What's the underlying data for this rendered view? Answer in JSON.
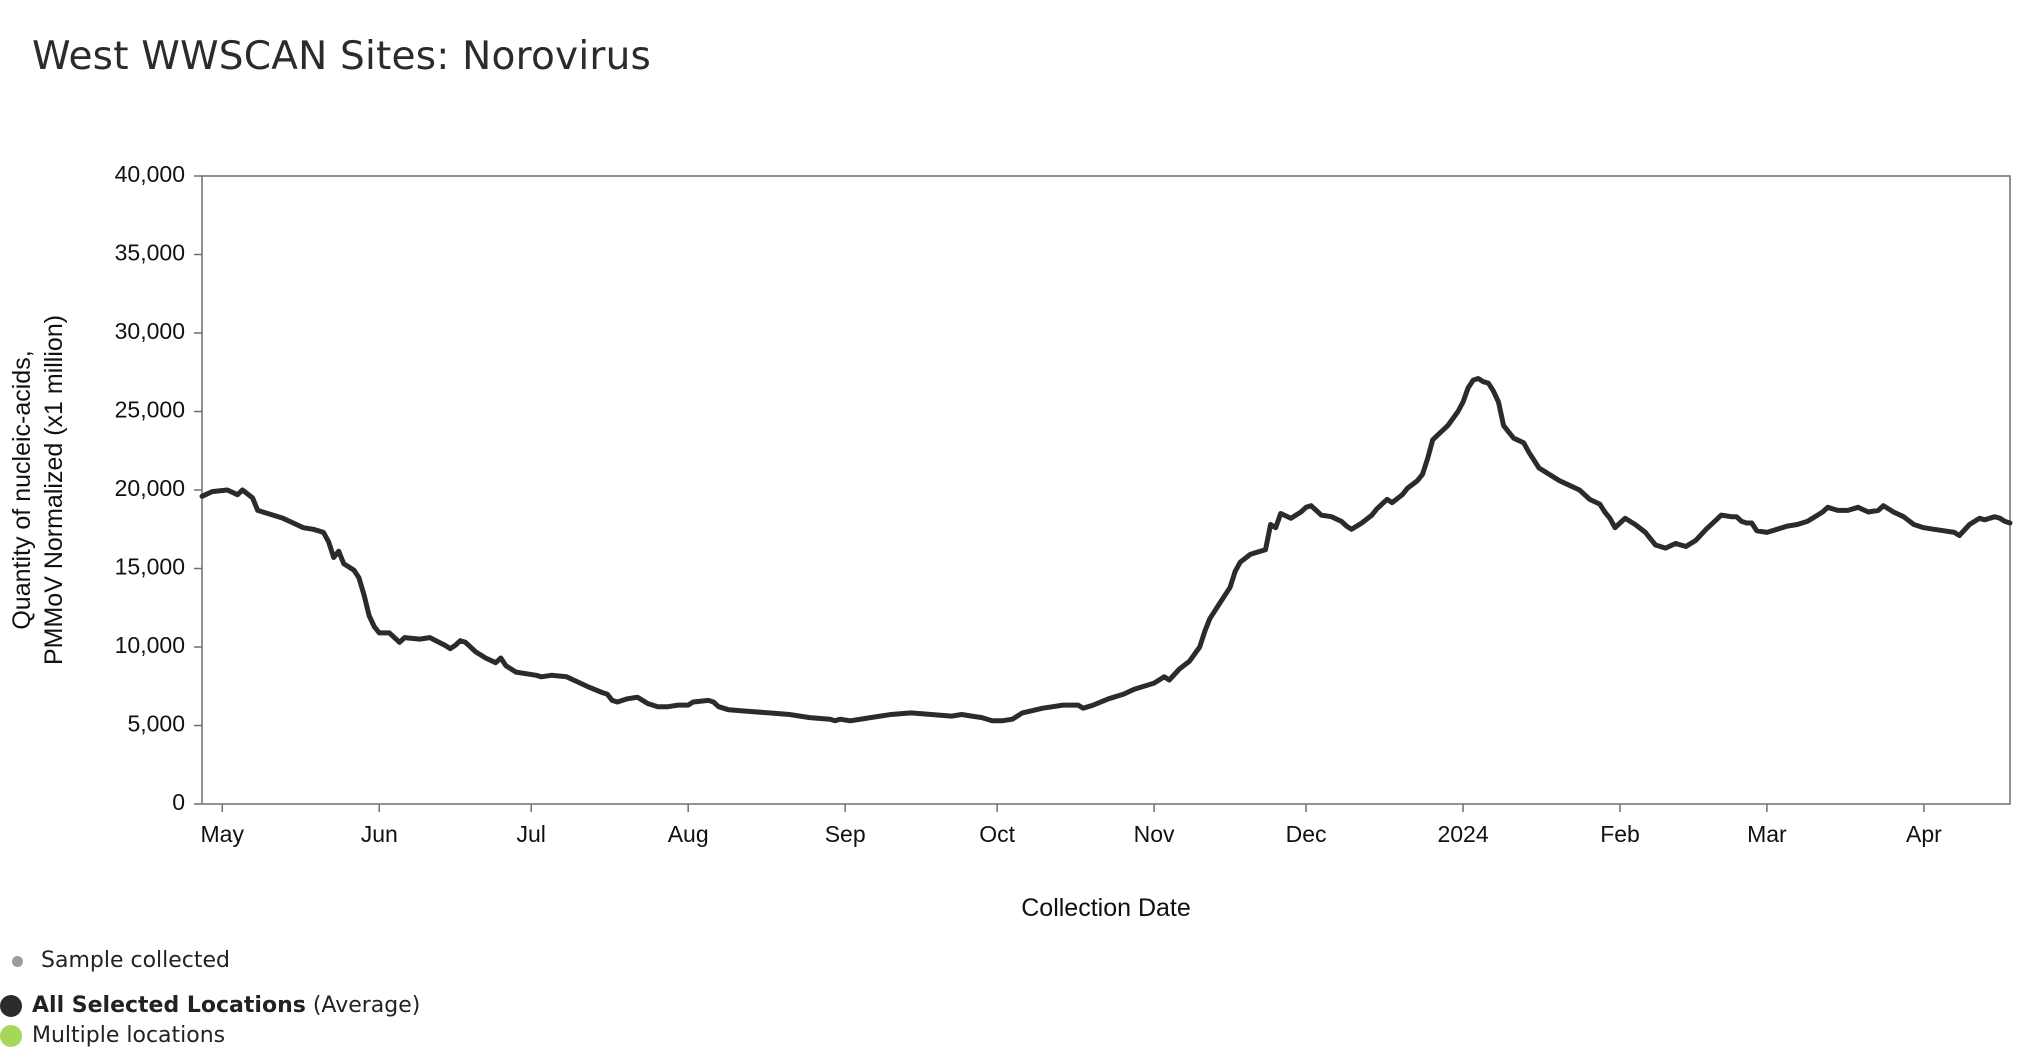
{
  "chart_data": {
    "type": "line",
    "title": "West WWSCAN Sites: Norovirus",
    "xlabel": "Collection Date",
    "ylabel_lines": [
      "Quantity of nucleic-acids,",
      "PMMoV Normalized (x1 million)"
    ],
    "ylim": [
      0,
      40000
    ],
    "y_ticks": [
      0,
      5000,
      10000,
      15000,
      20000,
      25000,
      30000,
      35000,
      40000
    ],
    "y_tick_labels": [
      "0",
      "5,000",
      "10,000",
      "15,000",
      "20,000",
      "25,000",
      "30,000",
      "35,000",
      "40,000"
    ],
    "xlim_days": [
      -4,
      353
    ],
    "x_ticks": [
      {
        "label": "May",
        "day": 0
      },
      {
        "label": "Jun",
        "day": 31
      },
      {
        "label": "Jul",
        "day": 61
      },
      {
        "label": "Aug",
        "day": 92
      },
      {
        "label": "Sep",
        "day": 123
      },
      {
        "label": "Oct",
        "day": 153
      },
      {
        "label": "Nov",
        "day": 184
      },
      {
        "label": "Dec",
        "day": 214
      },
      {
        "label": "2024",
        "day": 245
      },
      {
        "label": "Feb",
        "day": 276
      },
      {
        "label": "Mar",
        "day": 305
      },
      {
        "label": "Apr",
        "day": 336
      }
    ],
    "grid": false,
    "series": [
      {
        "name": "All Selected Locations",
        "color": "#2b2b2b",
        "points": [
          [
            -4,
            19600
          ],
          [
            -2,
            19900
          ],
          [
            1,
            20000
          ],
          [
            3,
            19700
          ],
          [
            4,
            20000
          ],
          [
            6,
            19500
          ],
          [
            7,
            18700
          ],
          [
            9,
            18500
          ],
          [
            12,
            18200
          ],
          [
            14,
            17900
          ],
          [
            16,
            17600
          ],
          [
            18,
            17500
          ],
          [
            20,
            17300
          ],
          [
            21,
            16700
          ],
          [
            22,
            15700
          ],
          [
            23,
            16100
          ],
          [
            24,
            15300
          ],
          [
            26,
            14900
          ],
          [
            27,
            14400
          ],
          [
            28,
            13300
          ],
          [
            29,
            12000
          ],
          [
            30,
            11300
          ],
          [
            31,
            10900
          ],
          [
            33,
            10900
          ],
          [
            35,
            10300
          ],
          [
            36,
            10600
          ],
          [
            39,
            10500
          ],
          [
            41,
            10600
          ],
          [
            44,
            10100
          ],
          [
            45,
            9900
          ],
          [
            46,
            10100
          ],
          [
            47,
            10400
          ],
          [
            48,
            10300
          ],
          [
            50,
            9700
          ],
          [
            52,
            9300
          ],
          [
            54,
            9000
          ],
          [
            55,
            9300
          ],
          [
            56,
            8800
          ],
          [
            58,
            8400
          ],
          [
            60,
            8300
          ],
          [
            62,
            8200
          ],
          [
            63,
            8100
          ],
          [
            65,
            8200
          ],
          [
            68,
            8100
          ],
          [
            70,
            7800
          ],
          [
            72,
            7500
          ],
          [
            75,
            7100
          ],
          [
            76,
            7000
          ],
          [
            77,
            6600
          ],
          [
            78,
            6500
          ],
          [
            80,
            6700
          ],
          [
            82,
            6800
          ],
          [
            84,
            6400
          ],
          [
            86,
            6200
          ],
          [
            88,
            6200
          ],
          [
            90,
            6300
          ],
          [
            92,
            6300
          ],
          [
            93,
            6500
          ],
          [
            96,
            6600
          ],
          [
            97,
            6500
          ],
          [
            98,
            6200
          ],
          [
            100,
            6000
          ],
          [
            104,
            5900
          ],
          [
            108,
            5800
          ],
          [
            112,
            5700
          ],
          [
            116,
            5500
          ],
          [
            120,
            5400
          ],
          [
            121,
            5300
          ],
          [
            122,
            5400
          ],
          [
            124,
            5300
          ],
          [
            128,
            5500
          ],
          [
            132,
            5700
          ],
          [
            136,
            5800
          ],
          [
            140,
            5700
          ],
          [
            144,
            5600
          ],
          [
            146,
            5700
          ],
          [
            148,
            5600
          ],
          [
            150,
            5500
          ],
          [
            152,
            5300
          ],
          [
            154,
            5300
          ],
          [
            156,
            5400
          ],
          [
            158,
            5800
          ],
          [
            162,
            6100
          ],
          [
            164,
            6200
          ],
          [
            166,
            6300
          ],
          [
            169,
            6300
          ],
          [
            170,
            6100
          ],
          [
            172,
            6300
          ],
          [
            175,
            6700
          ],
          [
            178,
            7000
          ],
          [
            180,
            7300
          ],
          [
            184,
            7700
          ],
          [
            186,
            8100
          ],
          [
            187,
            7900
          ],
          [
            189,
            8600
          ],
          [
            191,
            9100
          ],
          [
            193,
            10000
          ],
          [
            194,
            11000
          ],
          [
            195,
            11800
          ],
          [
            197,
            12800
          ],
          [
            199,
            13800
          ],
          [
            200,
            14800
          ],
          [
            201,
            15400
          ],
          [
            203,
            15900
          ],
          [
            204,
            16000
          ],
          [
            206,
            16200
          ],
          [
            207,
            17800
          ],
          [
            208,
            17600
          ],
          [
            209,
            18500
          ],
          [
            211,
            18200
          ],
          [
            213,
            18600
          ],
          [
            214,
            18900
          ],
          [
            215,
            19000
          ],
          [
            216,
            18700
          ],
          [
            217,
            18400
          ],
          [
            219,
            18300
          ],
          [
            221,
            18000
          ],
          [
            222,
            17700
          ],
          [
            223,
            17500
          ],
          [
            225,
            17900
          ],
          [
            227,
            18400
          ],
          [
            228,
            18800
          ],
          [
            230,
            19400
          ],
          [
            231,
            19200
          ],
          [
            233,
            19700
          ],
          [
            234,
            20100
          ],
          [
            236,
            20600
          ],
          [
            237,
            21000
          ],
          [
            238,
            22000
          ],
          [
            239,
            23200
          ],
          [
            240,
            23500
          ],
          [
            242,
            24100
          ],
          [
            244,
            25000
          ],
          [
            245,
            25600
          ],
          [
            246,
            26500
          ],
          [
            247,
            27000
          ],
          [
            248,
            27100
          ],
          [
            249,
            26900
          ],
          [
            250,
            26800
          ],
          [
            251,
            26300
          ],
          [
            252,
            25600
          ],
          [
            253,
            24100
          ],
          [
            254,
            23700
          ],
          [
            255,
            23300
          ],
          [
            257,
            23000
          ],
          [
            258,
            22400
          ],
          [
            260,
            21400
          ],
          [
            262,
            21000
          ],
          [
            264,
            20600
          ],
          [
            266,
            20300
          ],
          [
            268,
            20000
          ],
          [
            270,
            19400
          ],
          [
            272,
            19100
          ],
          [
            273,
            18600
          ],
          [
            274,
            18200
          ],
          [
            275,
            17600
          ],
          [
            276,
            17900
          ],
          [
            277,
            18200
          ],
          [
            279,
            17800
          ],
          [
            281,
            17300
          ],
          [
            282,
            16900
          ],
          [
            283,
            16500
          ],
          [
            285,
            16300
          ],
          [
            287,
            16600
          ],
          [
            288,
            16500
          ],
          [
            289,
            16400
          ],
          [
            291,
            16800
          ],
          [
            293,
            17500
          ],
          [
            295,
            18100
          ],
          [
            296,
            18400
          ],
          [
            298,
            18300
          ],
          [
            299,
            18300
          ],
          [
            300,
            18000
          ],
          [
            301,
            17900
          ],
          [
            302,
            17900
          ],
          [
            303,
            17400
          ],
          [
            305,
            17300
          ],
          [
            307,
            17500
          ],
          [
            309,
            17700
          ],
          [
            311,
            17800
          ],
          [
            313,
            18000
          ],
          [
            315,
            18400
          ],
          [
            316,
            18600
          ],
          [
            317,
            18900
          ],
          [
            319,
            18700
          ],
          [
            321,
            18700
          ],
          [
            323,
            18900
          ],
          [
            325,
            18600
          ],
          [
            327,
            18700
          ],
          [
            328,
            19000
          ],
          [
            330,
            18600
          ],
          [
            332,
            18300
          ],
          [
            334,
            17800
          ],
          [
            336,
            17600
          ],
          [
            338,
            17500
          ],
          [
            340,
            17400
          ],
          [
            342,
            17300
          ],
          [
            343,
            17100
          ],
          [
            345,
            17800
          ],
          [
            347,
            18200
          ],
          [
            348,
            18100
          ],
          [
            350,
            18300
          ],
          [
            351,
            18200
          ],
          [
            352,
            18000
          ],
          [
            353,
            17900
          ]
        ]
      }
    ]
  },
  "legend": {
    "sample_label": "Sample collected",
    "sample_color": "#9a9ca3",
    "avg_label_bold": "All Selected Locations",
    "avg_label_suffix": "(Average)",
    "avg_color": "#2b2b2b",
    "multi_label": "Multiple locations",
    "multi_color": "#a6d65a"
  }
}
